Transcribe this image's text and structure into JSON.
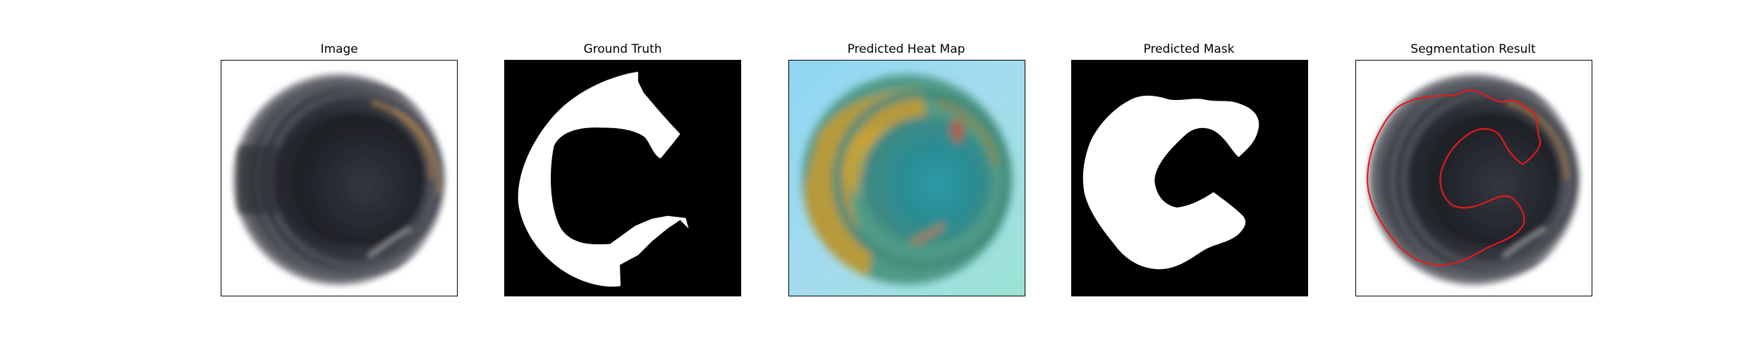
{
  "panels": [
    {
      "title": "Image"
    },
    {
      "title": "Ground Truth"
    },
    {
      "title": "Predicted Heat Map"
    },
    {
      "title": "Predicted Mask"
    },
    {
      "title": "Segmentation Result"
    }
  ],
  "colors": {
    "background": "#ffffff",
    "frame": "#000000",
    "mask_foreground": "#ffffff",
    "mask_background": "#000000",
    "contour": "#e31a1c",
    "heatmap_low": "#8fd8f5",
    "heatmap_mid": "#2e9aa0",
    "heatmap_high": "#c8a436"
  }
}
